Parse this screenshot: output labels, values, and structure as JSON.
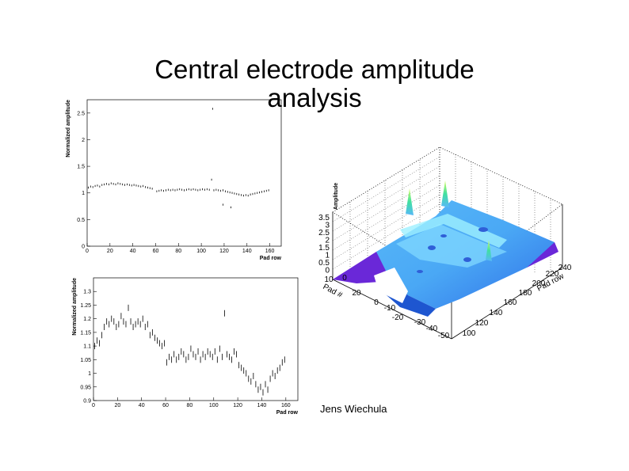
{
  "slide": {
    "title": "Central electrode amplitude\nanalysis",
    "author": "Jens Wiechula"
  },
  "chart_data": [
    {
      "type": "scatter",
      "xlabel": "Pad row",
      "ylabel": "Normalized amplitude",
      "xlim": [
        0,
        170
      ],
      "ylim": [
        0,
        2.75
      ],
      "xticks": [
        0,
        20,
        40,
        60,
        80,
        100,
        120,
        140,
        160
      ],
      "yticks": [
        0,
        0.5,
        1,
        1.5,
        2,
        2.5
      ],
      "ytick_labels": [
        "0",
        "0.5",
        "1",
        "1.5",
        "2",
        "2.5"
      ],
      "points": [
        [
          1,
          1.1
        ],
        [
          3,
          1.12
        ],
        [
          5,
          1.11
        ],
        [
          7,
          1.13
        ],
        [
          9,
          1.14
        ],
        [
          11,
          1.12
        ],
        [
          13,
          1.15
        ],
        [
          15,
          1.16
        ],
        [
          17,
          1.17
        ],
        [
          19,
          1.16
        ],
        [
          21,
          1.18
        ],
        [
          23,
          1.17
        ],
        [
          25,
          1.16
        ],
        [
          27,
          1.18
        ],
        [
          29,
          1.17
        ],
        [
          31,
          1.16
        ],
        [
          33,
          1.15
        ],
        [
          35,
          1.16
        ],
        [
          37,
          1.15
        ],
        [
          39,
          1.14
        ],
        [
          41,
          1.15
        ],
        [
          43,
          1.14
        ],
        [
          45,
          1.13
        ],
        [
          47,
          1.12
        ],
        [
          49,
          1.13
        ],
        [
          51,
          1.11
        ],
        [
          53,
          1.1
        ],
        [
          55,
          1.09
        ],
        [
          57,
          1.08
        ],
        [
          61,
          1.03
        ],
        [
          63,
          1.04
        ],
        [
          65,
          1.05
        ],
        [
          67,
          1.04
        ],
        [
          69,
          1.05
        ],
        [
          71,
          1.06
        ],
        [
          73,
          1.05
        ],
        [
          75,
          1.06
        ],
        [
          77,
          1.05
        ],
        [
          79,
          1.06
        ],
        [
          81,
          1.07
        ],
        [
          83,
          1.06
        ],
        [
          85,
          1.05
        ],
        [
          87,
          1.06
        ],
        [
          89,
          1.07
        ],
        [
          91,
          1.06
        ],
        [
          93,
          1.07
        ],
        [
          95,
          1.06
        ],
        [
          97,
          1.05
        ],
        [
          99,
          1.06
        ],
        [
          101,
          1.07
        ],
        [
          103,
          1.06
        ],
        [
          105,
          1.07
        ],
        [
          107,
          1.06
        ],
        [
          109,
          1.25
        ],
        [
          111,
          1.05
        ],
        [
          113,
          1.06
        ],
        [
          115,
          1.05
        ],
        [
          117,
          1.04
        ],
        [
          119,
          1.05
        ],
        [
          121,
          1.03
        ],
        [
          123,
          1.02
        ],
        [
          125,
          1.01
        ],
        [
          127,
          1.0
        ],
        [
          129,
          0.99
        ],
        [
          131,
          0.98
        ],
        [
          133,
          0.97
        ],
        [
          135,
          0.96
        ],
        [
          137,
          0.95
        ],
        [
          139,
          0.96
        ],
        [
          141,
          0.95
        ],
        [
          143,
          0.97
        ],
        [
          145,
          0.98
        ],
        [
          147,
          0.99
        ],
        [
          149,
          1.0
        ],
        [
          151,
          1.01
        ],
        [
          153,
          1.02
        ],
        [
          155,
          1.03
        ],
        [
          157,
          1.04
        ],
        [
          159,
          1.05
        ],
        [
          110,
          2.58
        ],
        [
          119,
          0.78
        ],
        [
          126,
          0.73
        ]
      ]
    },
    {
      "type": "scatter",
      "xlabel": "Pad row",
      "ylabel": "Normalized amplitude",
      "xlim": [
        0,
        170
      ],
      "ylim": [
        0.9,
        1.35
      ],
      "xticks": [
        0,
        20,
        40,
        60,
        80,
        100,
        120,
        140,
        160
      ],
      "yticks": [
        0.9,
        0.95,
        1,
        1.05,
        1.1,
        1.15,
        1.2,
        1.25,
        1.3
      ],
      "ytick_labels": [
        "0.9",
        "0.95",
        "1",
        "1.05",
        "1.1",
        "1.15",
        "1.2",
        "1.25",
        "1.3"
      ],
      "points": [
        [
          1,
          1.1
        ],
        [
          3,
          1.12
        ],
        [
          5,
          1.11
        ],
        [
          7,
          1.14
        ],
        [
          9,
          1.17
        ],
        [
          11,
          1.19
        ],
        [
          13,
          1.18
        ],
        [
          15,
          1.2
        ],
        [
          17,
          1.19
        ],
        [
          19,
          1.17
        ],
        [
          21,
          1.18
        ],
        [
          23,
          1.21
        ],
        [
          25,
          1.19
        ],
        [
          27,
          1.18
        ],
        [
          29,
          1.24
        ],
        [
          31,
          1.19
        ],
        [
          33,
          1.17
        ],
        [
          35,
          1.18
        ],
        [
          37,
          1.19
        ],
        [
          39,
          1.18
        ],
        [
          41,
          1.2
        ],
        [
          43,
          1.17
        ],
        [
          45,
          1.18
        ],
        [
          47,
          1.14
        ],
        [
          49,
          1.15
        ],
        [
          51,
          1.13
        ],
        [
          53,
          1.12
        ],
        [
          55,
          1.11
        ],
        [
          57,
          1.1
        ],
        [
          59,
          1.11
        ],
        [
          61,
          1.04
        ],
        [
          63,
          1.06
        ],
        [
          65,
          1.05
        ],
        [
          67,
          1.07
        ],
        [
          69,
          1.05
        ],
        [
          71,
          1.06
        ],
        [
          73,
          1.08
        ],
        [
          75,
          1.07
        ],
        [
          77,
          1.05
        ],
        [
          79,
          1.06
        ],
        [
          81,
          1.09
        ],
        [
          83,
          1.07
        ],
        [
          85,
          1.06
        ],
        [
          87,
          1.08
        ],
        [
          89,
          1.05
        ],
        [
          91,
          1.07
        ],
        [
          93,
          1.06
        ],
        [
          95,
          1.08
        ],
        [
          97,
          1.07
        ],
        [
          99,
          1.06
        ],
        [
          101,
          1.08
        ],
        [
          103,
          1.05
        ],
        [
          105,
          1.09
        ],
        [
          107,
          1.06
        ],
        [
          109,
          1.22
        ],
        [
          111,
          1.07
        ],
        [
          113,
          1.06
        ],
        [
          115,
          1.05
        ],
        [
          117,
          1.08
        ],
        [
          119,
          1.07
        ],
        [
          121,
          1.03
        ],
        [
          123,
          1.02
        ],
        [
          125,
          1.01
        ],
        [
          127,
          1.0
        ],
        [
          129,
          0.98
        ],
        [
          131,
          0.97
        ],
        [
          133,
          0.99
        ],
        [
          135,
          0.96
        ],
        [
          137,
          0.94
        ],
        [
          139,
          0.95
        ],
        [
          141,
          0.93
        ],
        [
          143,
          0.96
        ],
        [
          145,
          0.94
        ],
        [
          147,
          0.98
        ],
        [
          149,
          1.0
        ],
        [
          151,
          0.99
        ],
        [
          153,
          1.01
        ],
        [
          155,
          1.02
        ],
        [
          157,
          1.04
        ],
        [
          159,
          1.05
        ]
      ]
    },
    {
      "type": "surface",
      "zlabel": "Amplitude",
      "ylabel": "Pad row",
      "xlabel": "Pad #",
      "zticks": [
        "3.5",
        "3",
        "2.5",
        "2",
        "1.5",
        "1",
        "0.5",
        "0"
      ],
      "ptick_labels": [
        "10",
        "0",
        "20",
        "0",
        "-10",
        "-20",
        "-30",
        "-40",
        "-50"
      ],
      "rowtick_labels": [
        "100",
        "120",
        "140",
        "160",
        "180",
        "200",
        "220",
        "240"
      ],
      "peaks": [
        2.9,
        3.2,
        2.2
      ],
      "colors": {
        "floor": "#6a28d8",
        "surface_dark": "#3a78ee",
        "surface_mid": "#4aa8f5",
        "surface_light": "#80d8ff",
        "peak": "#40e0a0"
      }
    }
  ]
}
